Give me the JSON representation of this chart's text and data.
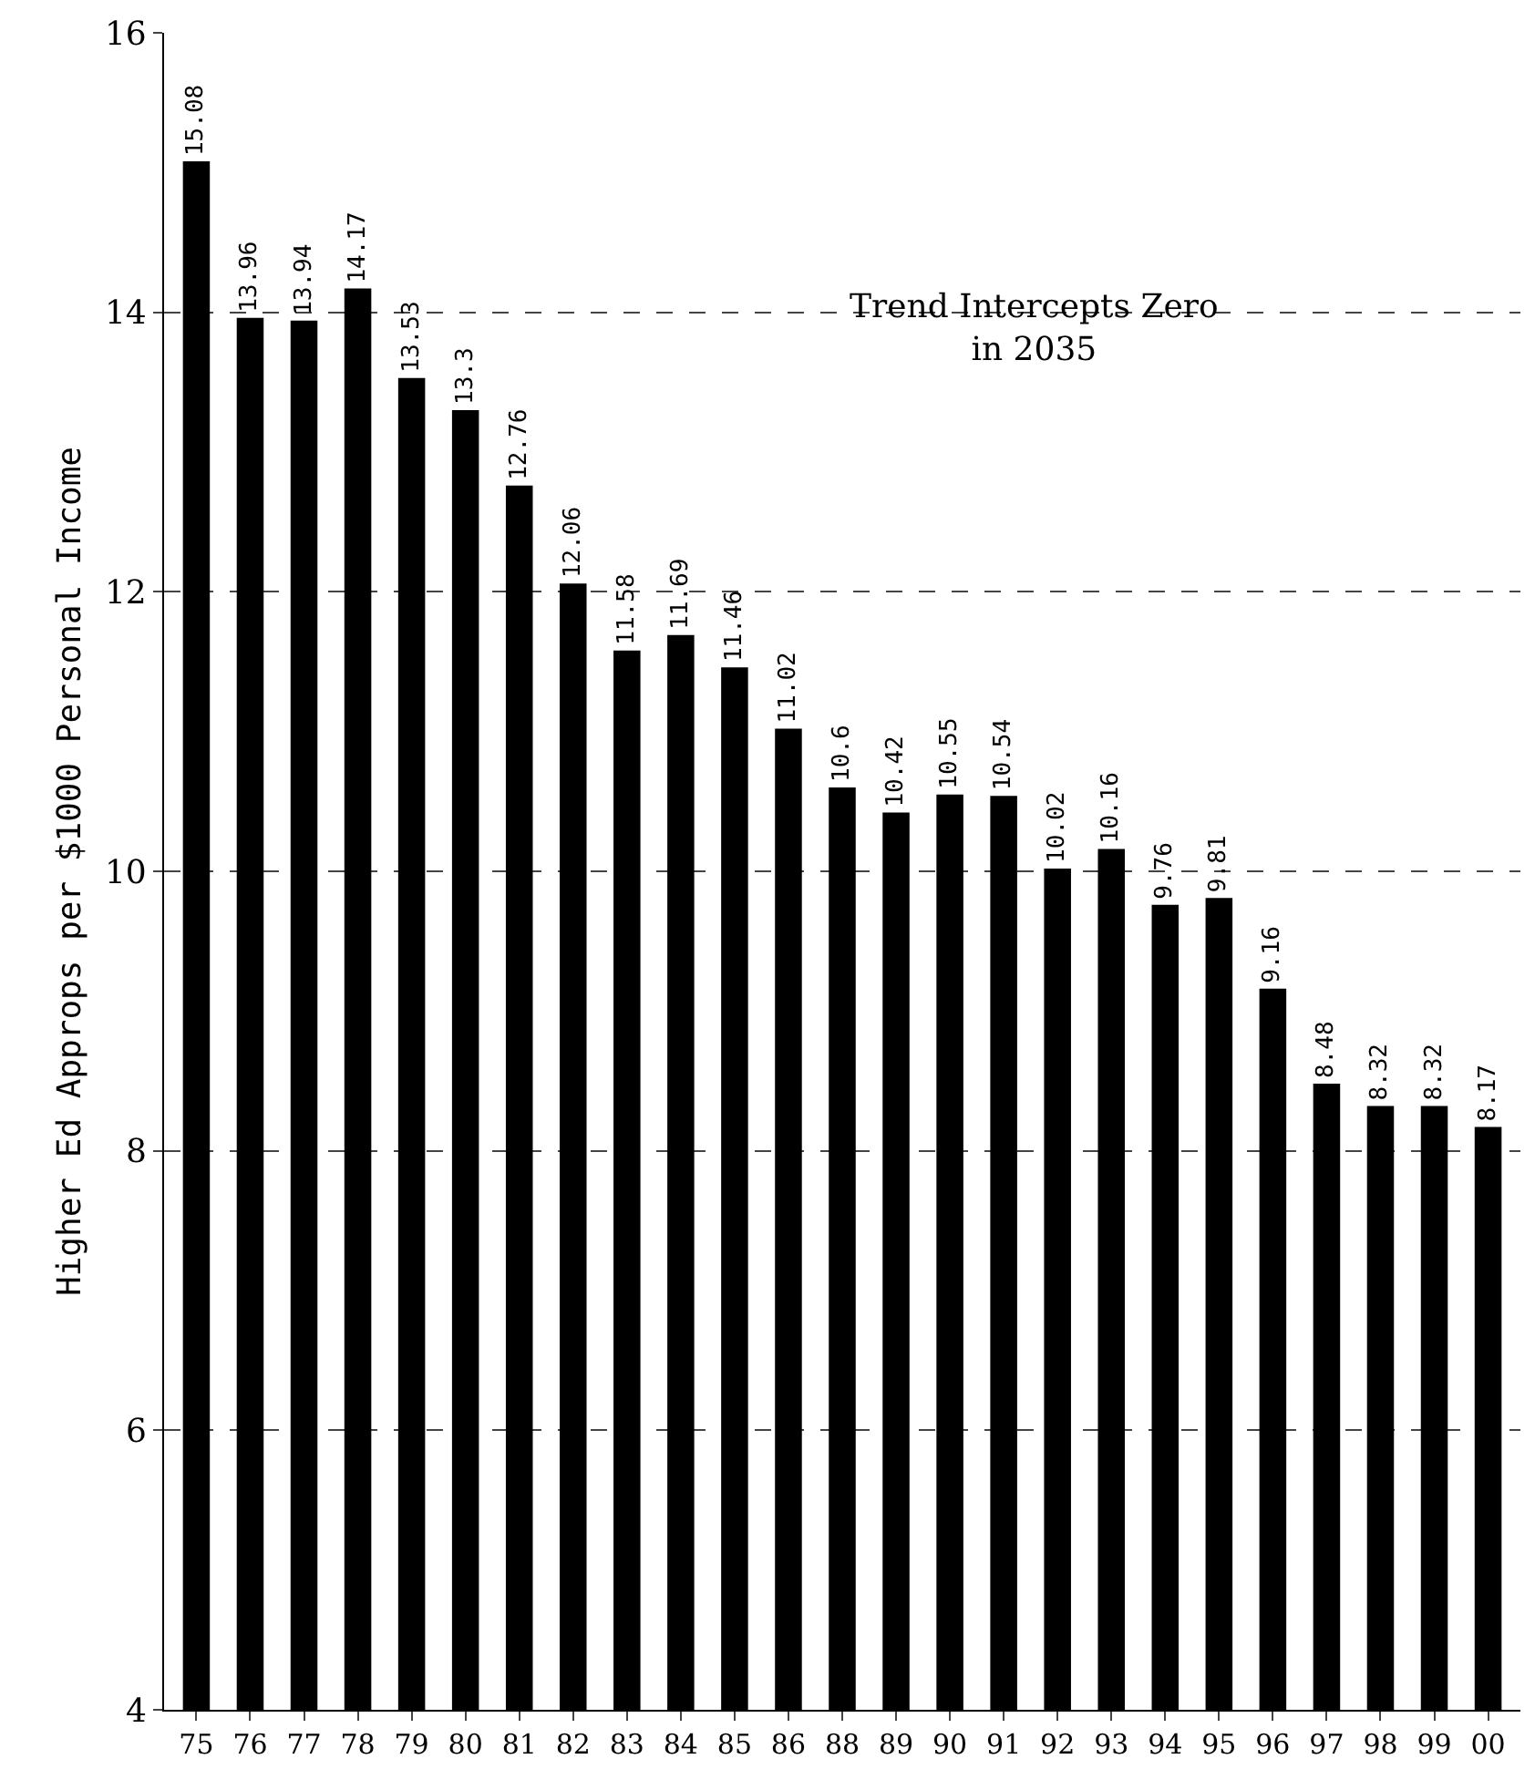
{
  "chart_data": {
    "type": "bar",
    "ylabel": "Higher Ed Approps per $1000 Personal Income",
    "categories": [
      "75",
      "76",
      "77",
      "78",
      "79",
      "80",
      "81",
      "82",
      "83",
      "84",
      "85",
      "86",
      "88",
      "89",
      "90",
      "91",
      "92",
      "93",
      "94",
      "95",
      "96",
      "97",
      "98",
      "99",
      "00"
    ],
    "values": [
      15.08,
      13.96,
      13.94,
      14.17,
      13.53,
      13.3,
      12.76,
      12.06,
      11.58,
      11.69,
      11.46,
      11.02,
      10.6,
      10.42,
      10.55,
      10.54,
      10.02,
      10.16,
      9.76,
      9.81,
      9.16,
      8.48,
      8.32,
      8.32,
      8.17
    ],
    "color": "#000000",
    "ylim": [
      4,
      16
    ],
    "yticks": [
      4,
      6,
      8,
      10,
      12,
      14,
      16
    ],
    "grid": "y",
    "data_labels": true,
    "annotations": [
      "Trend Intercepts Zero\nin 2035"
    ]
  }
}
